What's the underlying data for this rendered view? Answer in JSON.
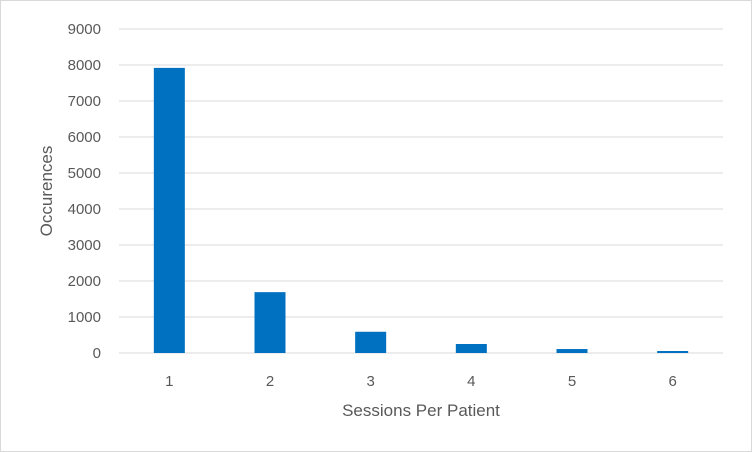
{
  "chart_data": {
    "type": "bar",
    "title": "",
    "xlabel": "Sessions Per Patient",
    "ylabel": "Occurences",
    "categories": [
      "1",
      "2",
      "3",
      "4",
      "5",
      "6"
    ],
    "series": [
      {
        "values": [
          7920,
          1690,
          590,
          250,
          110,
          55
        ]
      }
    ],
    "ylim": [
      0,
      9000
    ],
    "yticks": [
      "0",
      "1000",
      "2000",
      "3000",
      "4000",
      "5000",
      "6000",
      "7000",
      "8000",
      "9000"
    ],
    "grid": true,
    "legend": "none",
    "bar_color": "#0070C0",
    "grid_color": "#d9d9d9"
  }
}
